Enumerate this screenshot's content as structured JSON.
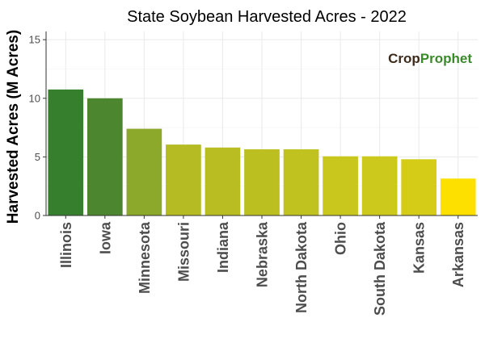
{
  "chart_data": {
    "type": "bar",
    "title": "State Soybean Harvested Acres - 2022",
    "xlabel": "",
    "ylabel": "Harvested Acres (M Acres)",
    "categories": [
      "Illinois",
      "Iowa",
      "Minnesota",
      "Missouri",
      "Indiana",
      "Nebraska",
      "North Dakota",
      "Ohio",
      "South Dakota",
      "Kansas",
      "Arkansas"
    ],
    "values": [
      10.75,
      10.0,
      7.4,
      6.05,
      5.8,
      5.65,
      5.65,
      5.05,
      5.05,
      4.8,
      3.15
    ],
    "ylim": [
      0,
      15.7
    ],
    "yticks": [
      0,
      5,
      10,
      15
    ],
    "grid": true,
    "legend": "none",
    "bar_colors": [
      "#367f2c",
      "#4c8730",
      "#8ca92c",
      "#b5bb22",
      "#b9bd21",
      "#bcbf20",
      "#c0c21f",
      "#c9c71d",
      "#ccc81c",
      "#d4cc17",
      "#fde000"
    ]
  },
  "logo": {
    "part_a": "Crop",
    "part_b": "Prophet"
  }
}
